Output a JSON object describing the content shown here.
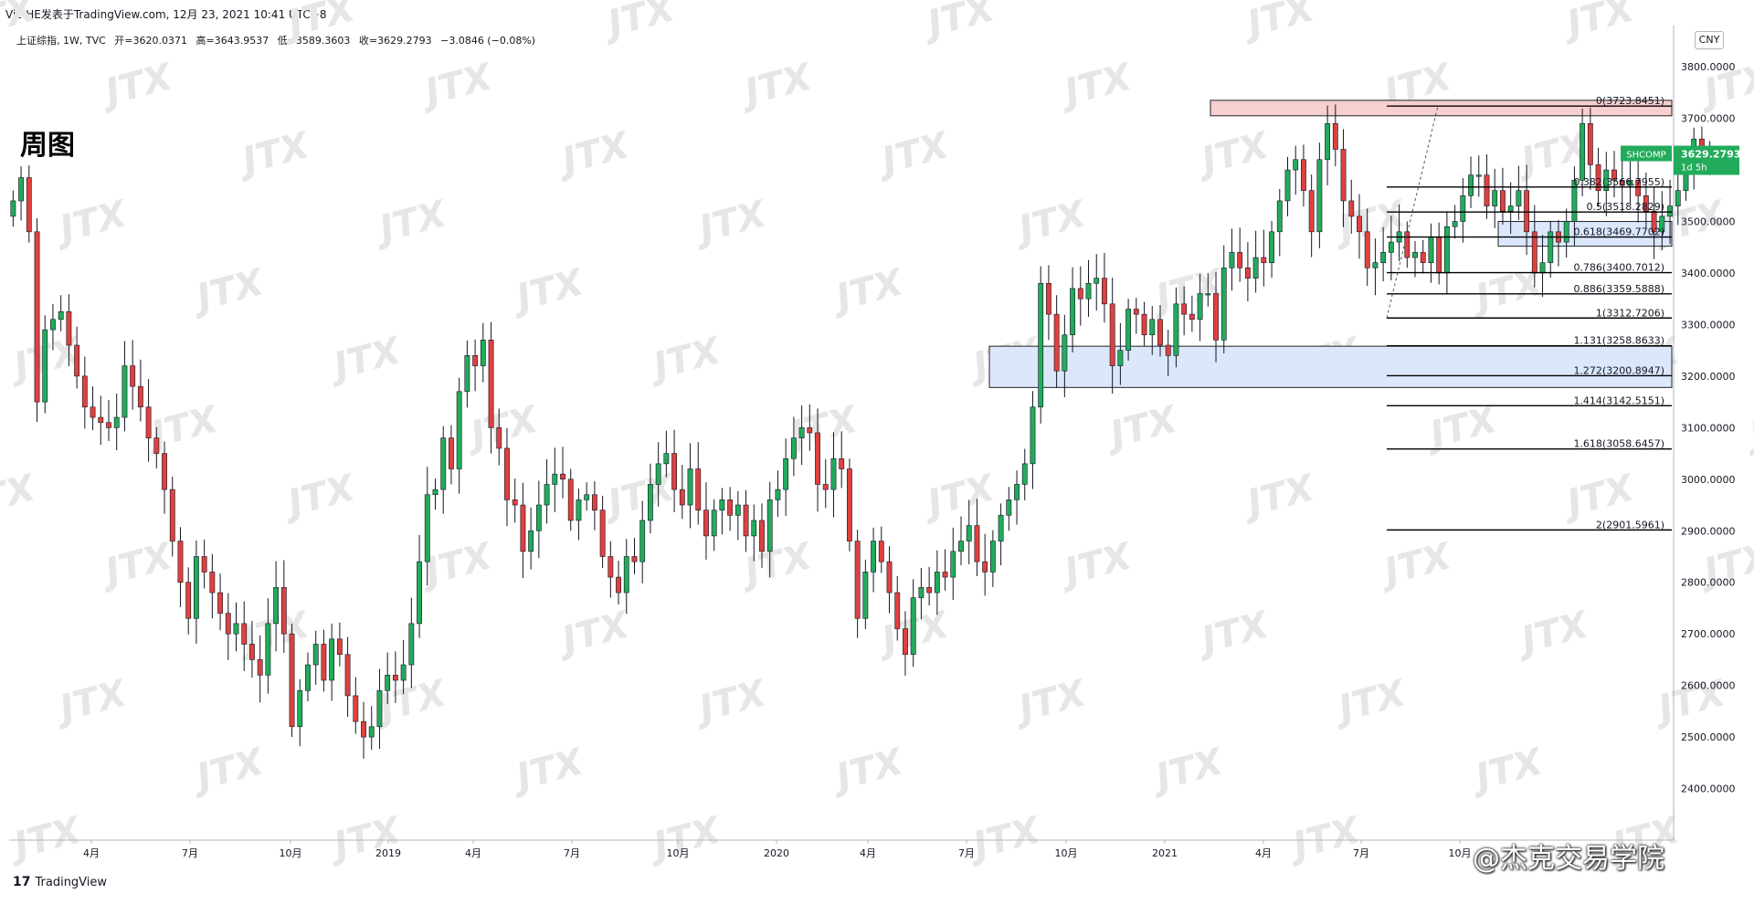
{
  "header": {
    "publish_line": "Vic-HE发表于TradingView.com,  12月 23, 2021 10:41 UTC+8",
    "symbol": "上证综指, 1W, TVC",
    "open": "开=3620.0371",
    "high": "高=3643.9537",
    "low": "低=3589.3603",
    "close": "收=3629.2793",
    "change": "−3.0846 (−0.08%)"
  },
  "title_big": "周图",
  "currency": "CNY",
  "logo_text": "TradingView",
  "watermark_credit": "@杰克交易学院",
  "watermark_text": "JTX",
  "price_tag": {
    "symbol": "SHCOMP",
    "price": "3629.2793",
    "countdown": "1d 5h",
    "color": "#22ab5b"
  },
  "colors": {
    "up": "#22ab5b",
    "down": "#e0403f",
    "fib_zone_top": "#f8cfcf",
    "zone_blue": "#dbe7fb"
  },
  "chart_data": {
    "type": "candlestick",
    "ylim": [
      2300,
      3880
    ],
    "y_ticks": [
      "3800.0000",
      "3700.0000",
      "3600.0000",
      "3500.0000",
      "3400.0000",
      "3300.0000",
      "3200.0000",
      "3100.0000",
      "3000.0000",
      "2900.0000",
      "2800.0000",
      "2700.0000",
      "2600.0000",
      "2500.0000",
      "2400.0000"
    ],
    "x_ticks": [
      "4月",
      "7月",
      "10月",
      "2019",
      "4月",
      "7月",
      "10月",
      "2020",
      "4月",
      "7月",
      "10月",
      "2021",
      "4月",
      "7月",
      "10月"
    ],
    "fib_levels": [
      {
        "label": "0(3723.8451)",
        "value": 3723.8451
      },
      {
        "label": "0.382(3566.7955)",
        "value": 3566.7955
      },
      {
        "label": "0.5(3518.2829)",
        "value": 3518.2829
      },
      {
        "label": "0.618(3469.7702)",
        "value": 3469.7702
      },
      {
        "label": "0.786(3400.7012)",
        "value": 3400.7012
      },
      {
        "label": "0.886(3359.5888)",
        "value": 3359.5888
      },
      {
        "label": "1(3312.7206)",
        "value": 3312.7206
      },
      {
        "label": "1.131(3258.8633)",
        "value": 3258.8633
      },
      {
        "label": "1.272(3200.8947)",
        "value": 3200.8947
      },
      {
        "label": "1.414(3142.5151)",
        "value": 3142.5151
      },
      {
        "label": "1.618(3058.6457)",
        "value": 3058.6457
      },
      {
        "label": "2(2901.5961)",
        "value": 2901.5961
      }
    ],
    "zones": [
      {
        "name": "top-zone",
        "color": "#f8cfcf",
        "y_top": 3735,
        "y_bottom": 3705
      },
      {
        "name": "mid-zone",
        "color": "#dbe7fb",
        "y_top": 3258,
        "y_bottom": 3178
      },
      {
        "name": "right-zone",
        "color": "#dbe7fb",
        "y_top": 3500,
        "y_bottom": 3452
      }
    ],
    "closes": [
      3540,
      3585,
      3480,
      3150,
      3290,
      3310,
      3325,
      3260,
      3200,
      3140,
      3120,
      3110,
      3100,
      3120,
      3220,
      3180,
      3140,
      3080,
      3050,
      2980,
      2880,
      2800,
      2730,
      2850,
      2820,
      2780,
      2740,
      2700,
      2720,
      2680,
      2650,
      2620,
      2720,
      2790,
      2700,
      2520,
      2590,
      2640,
      2680,
      2610,
      2690,
      2660,
      2580,
      2530,
      2500,
      2520,
      2590,
      2620,
      2610,
      2640,
      2720,
      2840,
      2970,
      2980,
      3080,
      3020,
      3170,
      3240,
      3220,
      3270,
      3100,
      3060,
      2960,
      2950,
      2860,
      2900,
      2950,
      2990,
      3010,
      3000,
      2920,
      2960,
      2970,
      2940,
      2850,
      2810,
      2780,
      2850,
      2840,
      2920,
      2990,
      3030,
      3050,
      2980,
      2950,
      3020,
      2940,
      2890,
      2940,
      2960,
      2930,
      2950,
      2890,
      2920,
      2860,
      2960,
      2980,
      3040,
      3080,
      3100,
      3090,
      2990,
      2980,
      3040,
      3020,
      2880,
      2730,
      2820,
      2880,
      2840,
      2780,
      2710,
      2660,
      2770,
      2790,
      2780,
      2820,
      2810,
      2860,
      2880,
      2910,
      2840,
      2820,
      2880,
      2930,
      2960,
      2990,
      3030,
      3140,
      3380,
      3320,
      3210,
      3280,
      3370,
      3350,
      3380,
      3390,
      3340,
      3220,
      3250,
      3330,
      3320,
      3280,
      3310,
      3260,
      3240,
      3340,
      3320,
      3310,
      3360,
      3360,
      3270,
      3410,
      3440,
      3410,
      3390,
      3430,
      3420,
      3480,
      3540,
      3600,
      3620,
      3560,
      3480,
      3620,
      3690,
      3640,
      3540,
      3510,
      3480,
      3410,
      3420,
      3440,
      3460,
      3480,
      3430,
      3440,
      3420,
      3470,
      3400,
      3490,
      3500,
      3550,
      3590,
      3590,
      3530,
      3560,
      3520,
      3530,
      3560,
      3480,
      3400,
      3420,
      3480,
      3460,
      3500,
      3580,
      3690,
      3610,
      3560,
      3600,
      3580,
      3570,
      3580,
      3550,
      3520,
      3480,
      3510,
      3530,
      3560,
      3600,
      3660,
      3630,
      3629
    ]
  }
}
